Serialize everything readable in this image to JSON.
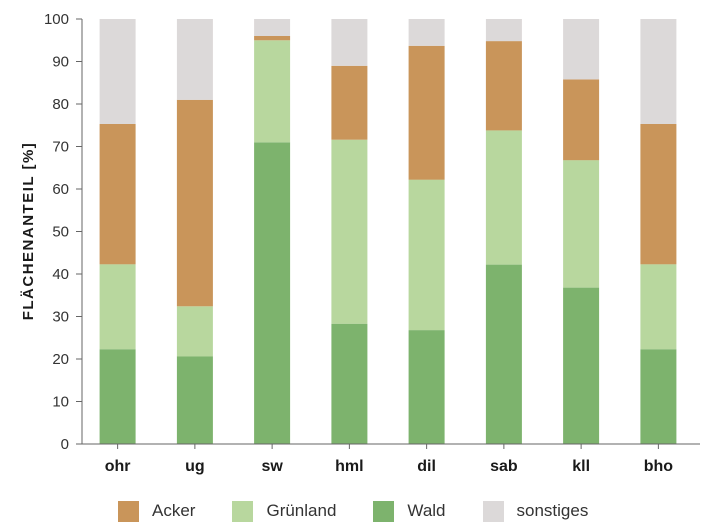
{
  "chart_data": {
    "type": "bar",
    "stacked": true,
    "categories": [
      "ohr",
      "ug",
      "sw",
      "hml",
      "dil",
      "sab",
      "kll",
      "bho"
    ],
    "series": [
      {
        "name": "Wald",
        "color": "#7db36d",
        "values": [
          22.3,
          20.6,
          71,
          28.3,
          26.8,
          42.2,
          36.8,
          22.3
        ]
      },
      {
        "name": "Grünland",
        "color": "#b8d79e",
        "values": [
          20,
          11.8,
          24,
          43.3,
          35.4,
          31.6,
          30,
          20
        ]
      },
      {
        "name": "Acker",
        "color": "#c9955a",
        "values": [
          33,
          48.6,
          1,
          17.4,
          31.5,
          21,
          19,
          33
        ]
      },
      {
        "name": "sonstiges",
        "color": "#dcd9d9",
        "values": [
          24.7,
          19,
          4,
          11,
          6.3,
          5.2,
          14.2,
          24.7
        ]
      }
    ],
    "legend_order": [
      "Acker",
      "Grünland",
      "Wald",
      "sonstiges"
    ],
    "ylabel": "FLÄCHENANTEIL [%]",
    "xlabel": "",
    "ylim": [
      0,
      100
    ],
    "yticks": [
      0,
      10,
      20,
      30,
      40,
      50,
      60,
      70,
      80,
      90,
      100
    ],
    "grid": false,
    "legend_position": "bottom"
  }
}
